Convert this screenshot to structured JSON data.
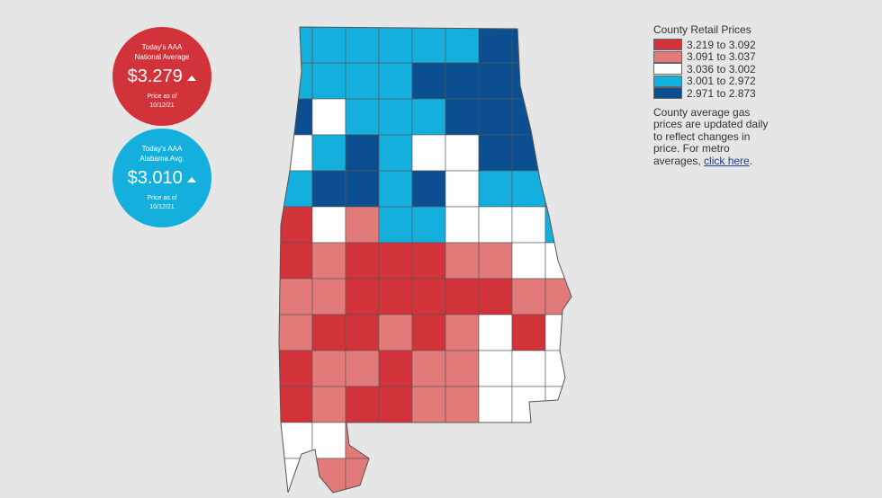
{
  "national": {
    "line1": "Today's AAA",
    "line2": "National Average",
    "price": "$3.279",
    "asof": "Price as of",
    "date": "10/12/21",
    "color": "#d2333a"
  },
  "state": {
    "line1": "Today's AAA",
    "line2": "Alabama Avg.",
    "price": "$3.010",
    "asof": "Price as of",
    "date": "10/12/21",
    "color": "#14afdd"
  },
  "legend": {
    "title": "County Retail Prices",
    "items": [
      {
        "label": "3.219 to 3.092",
        "color": "#d2333a"
      },
      {
        "label": "3.091 to 3.037",
        "color": "#e27a7a"
      },
      {
        "label": "3.036 to 3.002",
        "color": "#ffffff"
      },
      {
        "label": "3.001 to 2.972",
        "color": "#14afdd"
      },
      {
        "label": "2.971 to 2.873",
        "color": "#0b4f91"
      }
    ]
  },
  "note": {
    "text": "County average gas prices are updated daily to reflect changes in price. For metro averages, ",
    "link": "click here",
    "suffix": "."
  }
}
